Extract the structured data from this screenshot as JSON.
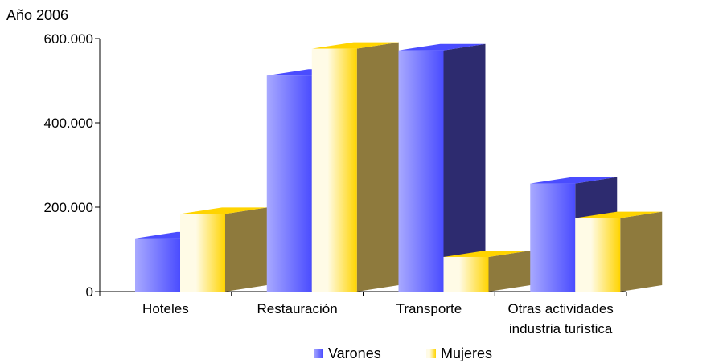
{
  "chart_data": {
    "type": "bar",
    "title": "Año 2006",
    "categories": [
      [
        "Hoteles"
      ],
      [
        "Restauración"
      ],
      [
        "Transporte"
      ],
      [
        "Otras actividades",
        "industria turística"
      ]
    ],
    "series": [
      {
        "name": "Varones",
        "values": [
          126000,
          512000,
          572000,
          256000
        ]
      },
      {
        "name": "Mujeres",
        "values": [
          184000,
          576000,
          82000,
          174000
        ]
      }
    ],
    "ylim": [
      0,
      600000
    ],
    "yticks": [
      0,
      200000,
      400000,
      600000
    ],
    "ytick_labels": [
      "0",
      "200.000",
      "400.000",
      "600.000"
    ],
    "legend": "bottom",
    "grid": false
  },
  "colors": {
    "varones_light": "#a8a9ff",
    "varones_main": "#4a4cff",
    "varones_dark": "#2d2b6f",
    "mujeres_light": "#fffbe6",
    "mujeres_main": "#ffd400",
    "mujeres_dark": "#8e7a3d",
    "axis": "#000000"
  }
}
